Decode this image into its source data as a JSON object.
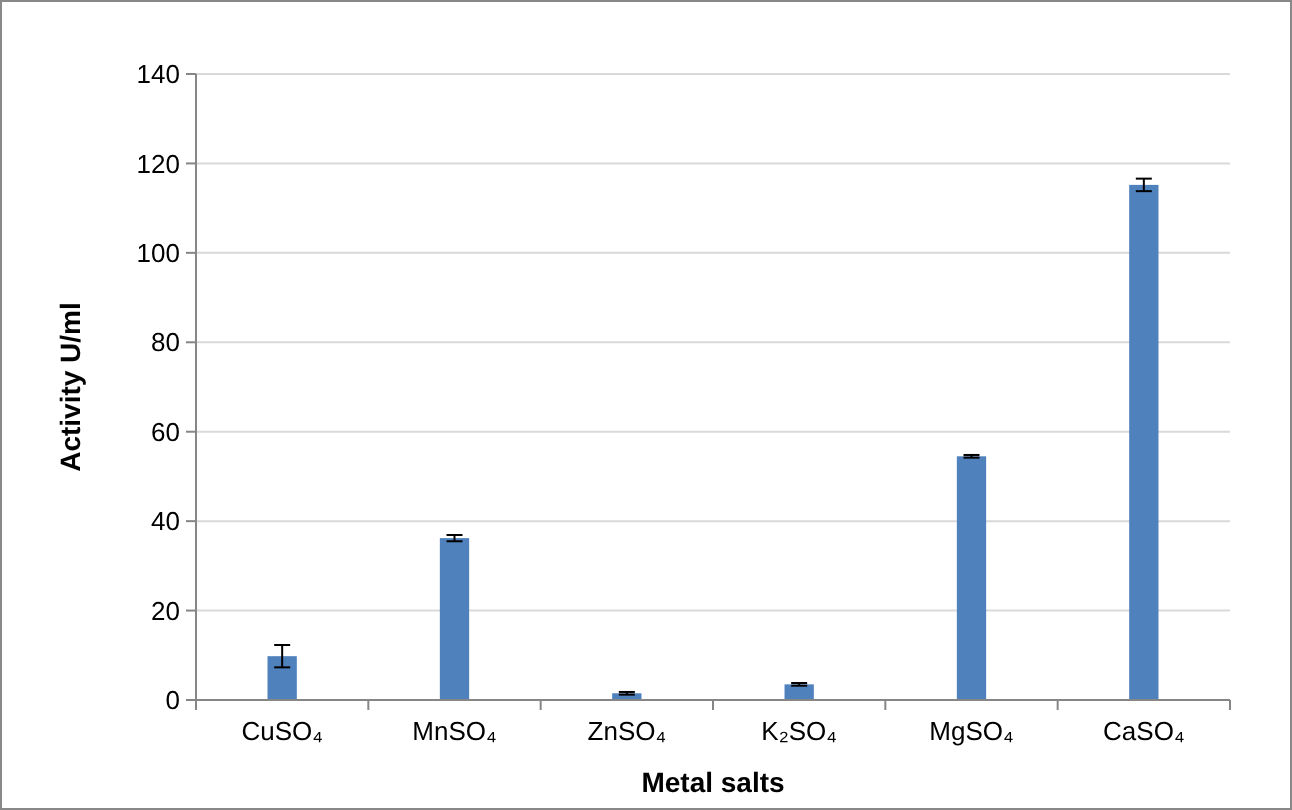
{
  "chart_data": {
    "type": "bar",
    "xlabel": "Metal salts",
    "ylabel": "Activity U/ml",
    "categories": [
      "CuSO₄",
      "MnSO₄",
      "ZnSO₄",
      "K₂SO₄",
      "MgSO₄",
      "CaSO₄"
    ],
    "values": [
      9.8,
      36.2,
      1.5,
      3.5,
      54.5,
      115.2
    ],
    "errors": [
      2.5,
      0.7,
      0.3,
      0.3,
      0.3,
      1.4
    ],
    "color": "#4f81bd",
    "ylim": [
      0,
      140
    ],
    "yticks": [
      0,
      20,
      40,
      60,
      80,
      100,
      120,
      140
    ],
    "grid": "y"
  }
}
